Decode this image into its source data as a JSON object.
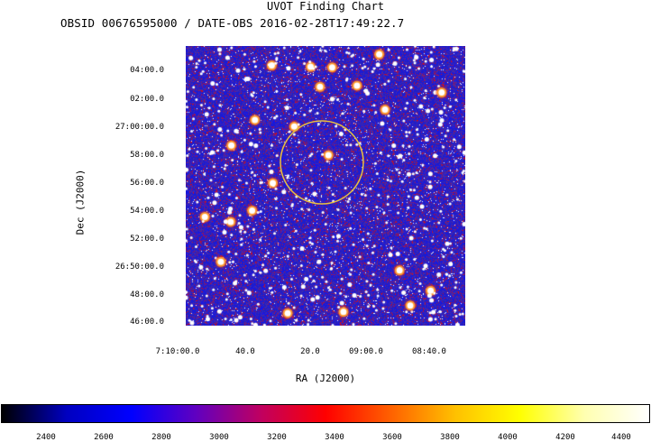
{
  "title": "UVOT Finding Chart",
  "subtitle": "OBSID 00676595000 / DATE-OBS 2016-02-28T17:49:22.7",
  "dec_axis": {
    "label": "Dec (J2000)",
    "ticks": [
      "04:00.0",
      "02:00.0",
      "27:00:00.0",
      "58:00.0",
      "56:00.0",
      "54:00.0",
      "52:00.0",
      "26:50:00.0",
      "48:00.0",
      "46:00.0"
    ]
  },
  "ra_axis": {
    "label": "RA (J2000)",
    "ticks": [
      "7:10:00.0",
      "40.0",
      "20.0",
      "09:00.0",
      "08:40.0"
    ]
  },
  "colorbar": {
    "ticks": [
      "2400",
      "2600",
      "2800",
      "3000",
      "3200",
      "3400",
      "3600",
      "3800",
      "4000",
      "4200",
      "4400"
    ],
    "colormap": [
      "#000000",
      "#0000c0",
      "#0000ff",
      "#6000c0",
      "#c00060",
      "#ff0000",
      "#ff6000",
      "#ffc000",
      "#ffff00",
      "#ffffb0",
      "#ffffff"
    ]
  },
  "colors": {
    "background_field": "#3030a0",
    "circle": "#e8c040"
  }
}
